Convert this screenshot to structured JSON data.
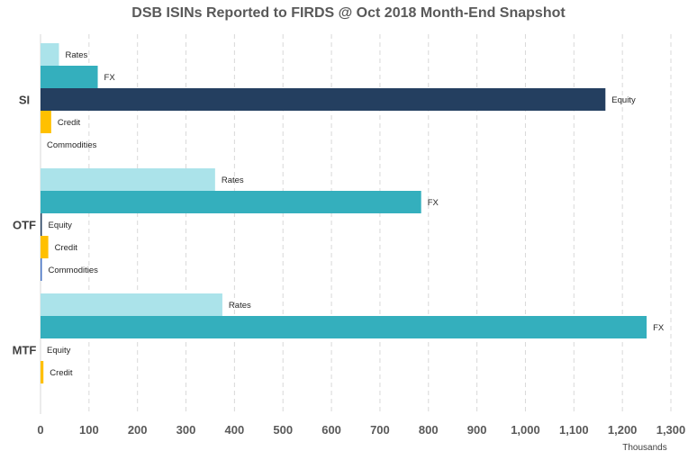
{
  "chart_data": {
    "type": "bar",
    "orientation": "horizontal",
    "title": "DSB ISINs Reported to FIRDS @ Oct 2018 Month-End Snapshot",
    "x_unit_label": "Thousands",
    "xlim": [
      0,
      1300
    ],
    "x_ticks": [
      0,
      100,
      200,
      300,
      400,
      500,
      600,
      700,
      800,
      900,
      1000,
      1100,
      1200,
      1300
    ],
    "x_tick_labels": [
      "0",
      "100",
      "200",
      "300",
      "400",
      "500",
      "600",
      "700",
      "800",
      "900",
      "1,000",
      "1,100",
      "1,200",
      "1,300"
    ],
    "grid": "vertical dashed",
    "colors": {
      "Rates": "#abe3ea",
      "FX": "#34afbd",
      "Equity": "#243f60",
      "Credit": "#ffc000",
      "Commodities": "#4472c4"
    },
    "groups": [
      {
        "name": "SI",
        "bars": [
          {
            "series": "Rates",
            "value": 38
          },
          {
            "series": "FX",
            "value": 118
          },
          {
            "series": "Equity",
            "value": 1165
          },
          {
            "series": "Credit",
            "value": 22
          },
          {
            "series": "Commodities",
            "value": 0
          }
        ]
      },
      {
        "name": "OTF",
        "bars": [
          {
            "series": "Rates",
            "value": 360
          },
          {
            "series": "FX",
            "value": 785
          },
          {
            "series": "Equity",
            "value": 2
          },
          {
            "series": "Credit",
            "value": 16
          },
          {
            "series": "Commodities",
            "value": 2
          }
        ]
      },
      {
        "name": "MTF",
        "bars": [
          {
            "series": "Rates",
            "value": 375
          },
          {
            "series": "FX",
            "value": 1250
          },
          {
            "series": "Equity",
            "value": 0
          },
          {
            "series": "Credit",
            "value": 6
          }
        ]
      }
    ]
  }
}
